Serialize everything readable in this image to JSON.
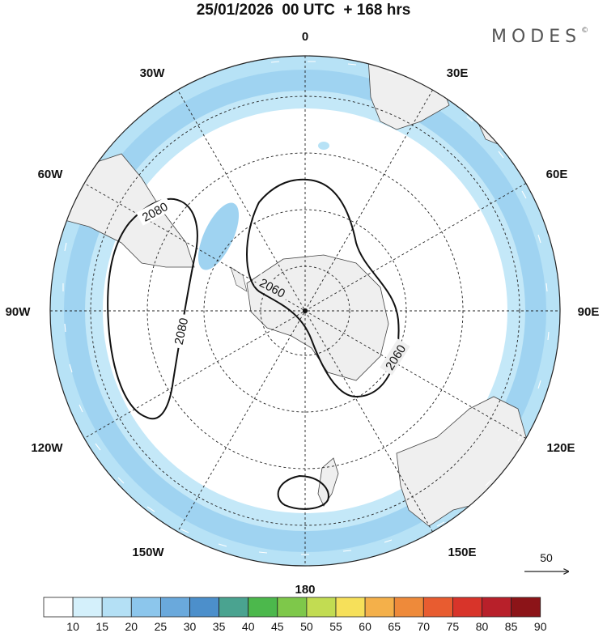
{
  "title": "25/01/2026  00 UTC  + 168 hrs",
  "logo": "MODES",
  "logo_mark": "©",
  "longitude_labels": {
    "n": "0",
    "e30": "30E",
    "e60": "60E",
    "e90": "90E",
    "e120": "120E",
    "e150": "150E",
    "s": "180",
    "w150": "150W",
    "w120": "120W",
    "w90": "90W",
    "w60": "60W",
    "w30": "30W"
  },
  "contour_labels": [
    "2080",
    "2080",
    "2060",
    "2060"
  ],
  "vector_scale": "50",
  "colorbar": {
    "labels": [
      "10",
      "15",
      "20",
      "25",
      "30",
      "35",
      "40",
      "45",
      "50",
      "55",
      "60",
      "65",
      "70",
      "75",
      "80",
      "85",
      "90"
    ],
    "colors": [
      "#ffffff",
      "#d4f0fb",
      "#b4e0f5",
      "#8cc6ec",
      "#6aa9dc",
      "#4c8fcb",
      "#4aa390",
      "#4cb84c",
      "#7ec84a",
      "#c2dc52",
      "#f6e05a",
      "#f4b04a",
      "#ee8a3a",
      "#e85c30",
      "#d8342a",
      "#b8202a",
      "#8c1418"
    ]
  }
}
